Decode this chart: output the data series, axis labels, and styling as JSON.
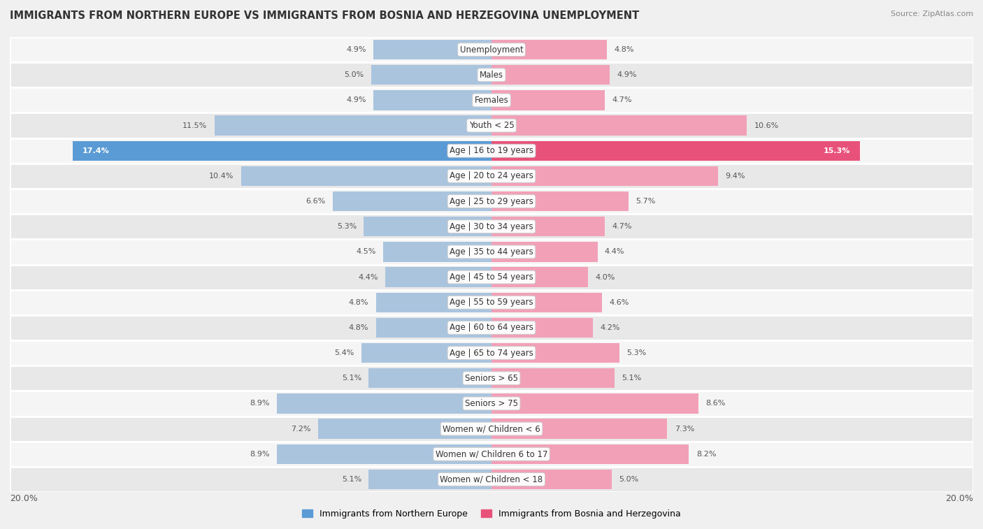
{
  "title": "IMMIGRANTS FROM NORTHERN EUROPE VS IMMIGRANTS FROM BOSNIA AND HERZEGOVINA UNEMPLOYMENT",
  "source": "Source: ZipAtlas.com",
  "categories": [
    "Unemployment",
    "Males",
    "Females",
    "Youth < 25",
    "Age | 16 to 19 years",
    "Age | 20 to 24 years",
    "Age | 25 to 29 years",
    "Age | 30 to 34 years",
    "Age | 35 to 44 years",
    "Age | 45 to 54 years",
    "Age | 55 to 59 years",
    "Age | 60 to 64 years",
    "Age | 65 to 74 years",
    "Seniors > 65",
    "Seniors > 75",
    "Women w/ Children < 6",
    "Women w/ Children 6 to 17",
    "Women w/ Children < 18"
  ],
  "left_values": [
    4.9,
    5.0,
    4.9,
    11.5,
    17.4,
    10.4,
    6.6,
    5.3,
    4.5,
    4.4,
    4.8,
    4.8,
    5.4,
    5.1,
    8.9,
    7.2,
    8.9,
    5.1
  ],
  "right_values": [
    4.8,
    4.9,
    4.7,
    10.6,
    15.3,
    9.4,
    5.7,
    4.7,
    4.4,
    4.0,
    4.6,
    4.2,
    5.3,
    5.1,
    8.6,
    7.3,
    8.2,
    5.0
  ],
  "left_color_normal": "#aac4de",
  "right_color_normal": "#f2a0b8",
  "left_color_highlight": "#5b9bd5",
  "right_color_highlight": "#e8517a",
  "left_label": "Immigrants from Northern Europe",
  "right_label": "Immigrants from Bosnia and Herzegovina",
  "left_legend_color": "#5b9bd5",
  "right_legend_color": "#e8517a",
  "highlight_indices": [
    4
  ],
  "axis_limit": 20.0,
  "bg_color": "#f0f0f0",
  "row_colors": [
    "#f5f5f5",
    "#e8e8e8"
  ],
  "separator_color": "#ffffff",
  "label_fontsize": 8.5,
  "title_fontsize": 10.5,
  "value_fontsize": 8.0
}
